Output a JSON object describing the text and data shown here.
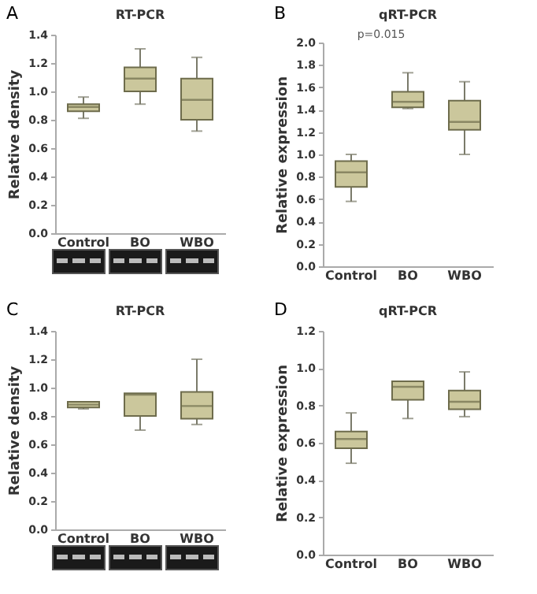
{
  "chart_data": [
    {
      "type": "box",
      "title": "RT-PCR",
      "ylabel": "Relative density",
      "annotations": [
        "A"
      ],
      "categories": [
        "Control",
        "BO",
        "WBO"
      ],
      "ylim": [
        0,
        1.4
      ],
      "yticks": [
        {
          "value": 0,
          "label": "0.0"
        },
        0.2,
        0.4,
        0.6,
        0.8,
        {
          "value": 1,
          "label": "1.0"
        },
        1.2,
        1.4
      ],
      "series": [
        {
          "color": "#cbc79c",
          "boxes": [
            {
              "low": 0.81,
              "q1": 0.86,
              "median": 0.89,
              "q3": 0.91,
              "high": 0.96
            },
            {
              "low": 0.91,
              "q1": 1.0,
              "median": 1.09,
              "q3": 1.17,
              "high": 1.3
            },
            {
              "low": 0.72,
              "q1": 0.8,
              "median": 0.94,
              "q3": 1.09,
              "high": 1.24
            }
          ]
        }
      ]
    },
    {
      "type": "box",
      "title": "qRT-PCR",
      "ylabel": "Relative expression",
      "annotations": [
        "B",
        "p=0.015"
      ],
      "categories": [
        "Control",
        "BO",
        "WBO"
      ],
      "ylim": [
        0,
        2.0
      ],
      "yticks": [
        {
          "value": 0,
          "label": "0.0"
        },
        0.2,
        0.4,
        0.6,
        0.8,
        {
          "value": 1,
          "label": "1.0"
        },
        1.2,
        1.4,
        1.6,
        1.8,
        {
          "value": 2,
          "label": "2.0"
        }
      ],
      "series": [
        {
          "color": "#cbc79c",
          "boxes": [
            {
              "low": 0.58,
              "q1": 0.71,
              "median": 0.84,
              "q3": 0.94,
              "high": 1.0
            },
            {
              "low": 1.41,
              "q1": 1.42,
              "median": 1.47,
              "q3": 1.56,
              "high": 1.73
            },
            {
              "low": 1.0,
              "q1": 1.22,
              "median": 1.29,
              "q3": 1.48,
              "high": 1.65
            }
          ]
        }
      ]
    },
    {
      "type": "box",
      "title": "RT-PCR",
      "ylabel": "Relative density",
      "annotations": [
        "C"
      ],
      "categories": [
        "Control",
        "BO",
        "WBO"
      ],
      "ylim": [
        0,
        1.4
      ],
      "yticks": [
        {
          "value": 0,
          "label": "0.0"
        },
        0.2,
        0.4,
        0.6,
        0.8,
        {
          "value": 1,
          "label": "1.0"
        },
        1.2,
        1.4
      ],
      "series": [
        {
          "color": "#cbc79c",
          "boxes": [
            {
              "low": 0.85,
              "q1": 0.86,
              "median": 0.88,
              "q3": 0.9,
              "high": 0.9
            },
            {
              "low": 0.7,
              "q1": 0.8,
              "median": 0.95,
              "q3": 0.96,
              "high": 0.96
            },
            {
              "low": 0.74,
              "q1": 0.78,
              "median": 0.87,
              "q3": 0.97,
              "high": 1.2
            }
          ]
        }
      ]
    },
    {
      "type": "box",
      "title": "qRT-PCR",
      "ylabel": "Relative expression",
      "annotations": [
        "D"
      ],
      "categories": [
        "Control",
        "BO",
        "WBO"
      ],
      "ylim": [
        0,
        1.2
      ],
      "yticks": [
        {
          "value": 0,
          "label": "0.0"
        },
        0.2,
        0.4,
        0.6,
        0.8,
        {
          "value": 1,
          "label": "1.0"
        },
        {
          "value": 1.2,
          "label": "1.2"
        }
      ],
      "series": [
        {
          "color": "#cbc79c",
          "boxes": [
            {
              "low": 0.49,
              "q1": 0.57,
              "median": 0.62,
              "q3": 0.66,
              "high": 0.76
            },
            {
              "low": 0.73,
              "q1": 0.83,
              "median": 0.9,
              "q3": 0.93,
              "high": 0.93
            },
            {
              "low": 0.74,
              "q1": 0.78,
              "median": 0.82,
              "q3": 0.88,
              "high": 0.98
            }
          ]
        }
      ]
    }
  ]
}
